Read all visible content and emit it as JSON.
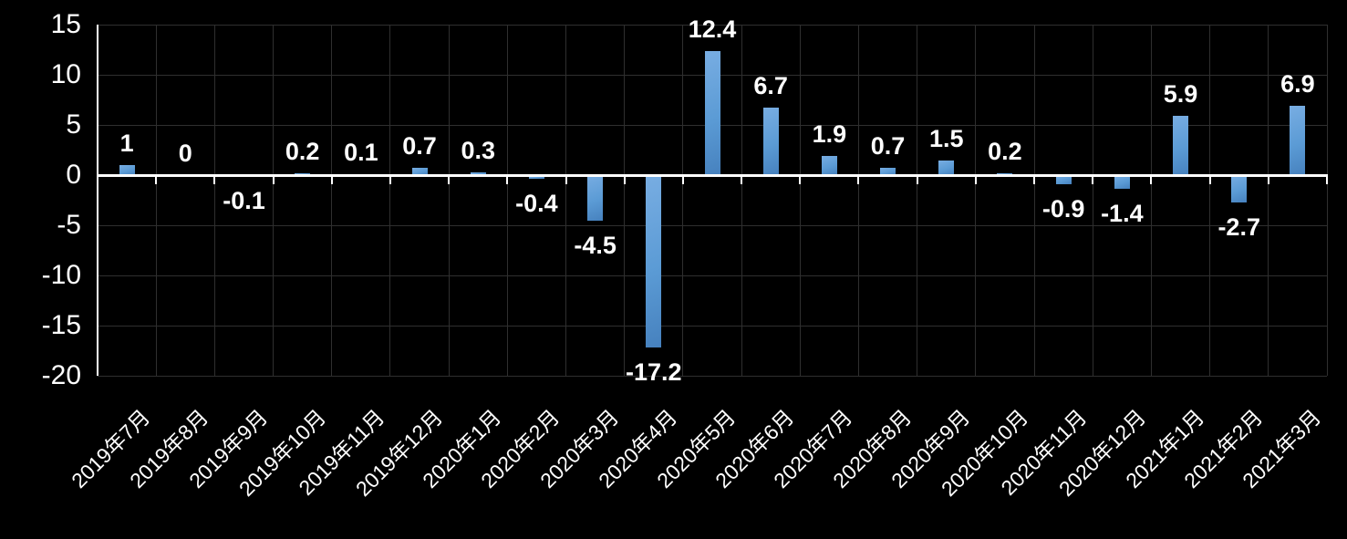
{
  "chart_data": {
    "type": "bar",
    "title": "",
    "xlabel": "",
    "ylabel": "",
    "categories": [
      "2019年7月",
      "2019年8月",
      "2019年9月",
      "2019年10月",
      "2019年11月",
      "2019年12月",
      "2020年1月",
      "2020年2月",
      "2020年3月",
      "2020年4月",
      "2020年5月",
      "2020年6月",
      "2020年7月",
      "2020年8月",
      "2020年9月",
      "2020年10月",
      "2020年11月",
      "2020年12月",
      "2021年1月",
      "2021年2月",
      "2021年3月"
    ],
    "values": [
      1,
      0,
      -0.1,
      0.2,
      0.1,
      0.7,
      0.3,
      -0.4,
      -4.5,
      -17.2,
      12.4,
      6.7,
      1.9,
      0.7,
      1.5,
      0.2,
      -0.9,
      -1.4,
      5.9,
      -2.7,
      6.9
    ],
    "ylim": [
      -20,
      15
    ],
    "yticks": [
      15,
      10,
      5,
      0,
      -5,
      -10,
      -15,
      -20
    ],
    "grid": true,
    "legend_position": "none",
    "colors": {
      "background": "#000000",
      "bar_light": "#78ADE2",
      "bar_main": "#5B9BD5",
      "bar_dark": "#4681BE",
      "gridline": "#2F2F2F",
      "axis_line": "#FFFFFF",
      "text": "#FFFFFF"
    }
  }
}
